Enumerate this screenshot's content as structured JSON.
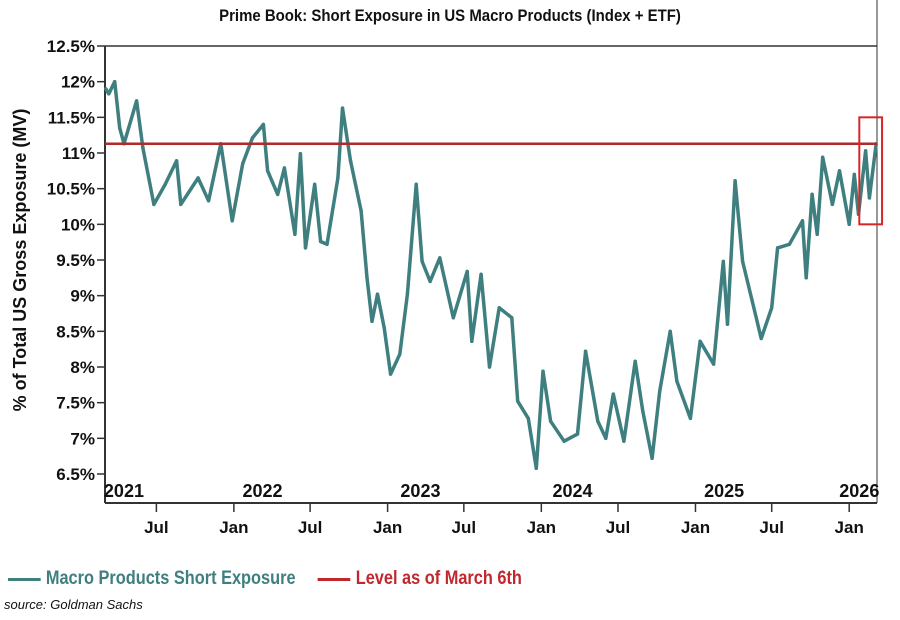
{
  "chart_data": {
    "type": "line",
    "title": "Prime Book: Short Exposure in US Macro Products (Index + ETF)",
    "xlabel": "",
    "ylabel": "% of Total US Gross Exposure (MV)",
    "ylim": [
      6.5,
      12.5
    ],
    "xlim": [
      "2021-03-01",
      "2026-03-08"
    ],
    "yticks": [
      "12.5%",
      "12%",
      "11.5%",
      "11%",
      "10.5%",
      "10%",
      "9.5%",
      "9%",
      "8.5%",
      "8%",
      "7.5%",
      "7%",
      "6.5%"
    ],
    "ytick_values": [
      12.5,
      12,
      11.5,
      11,
      10.5,
      10,
      9.5,
      9,
      8.5,
      8,
      7.5,
      7,
      6.5
    ],
    "year_labels": [
      {
        "label": "2021",
        "date": "2021-04-15"
      },
      {
        "label": "2022",
        "date": "2022-03-10"
      },
      {
        "label": "2023",
        "date": "2023-03-20"
      },
      {
        "label": "2024",
        "date": "2024-03-15"
      },
      {
        "label": "2025",
        "date": "2025-03-10"
      },
      {
        "label": "2026",
        "date": "2026-01-25"
      }
    ],
    "month_ticks": [
      {
        "label": "Jul",
        "date": "2021-07-01"
      },
      {
        "label": "Jan",
        "date": "2022-01-01"
      },
      {
        "label": "Jul",
        "date": "2022-07-01"
      },
      {
        "label": "Jan",
        "date": "2023-01-01"
      },
      {
        "label": "Jul",
        "date": "2023-07-01"
      },
      {
        "label": "Jan",
        "date": "2024-01-01"
      },
      {
        "label": "Jul",
        "date": "2024-07-01"
      },
      {
        "label": "Jan",
        "date": "2025-01-01"
      },
      {
        "label": "Jul",
        "date": "2025-07-01"
      },
      {
        "label": "Jan",
        "date": "2026-01-01"
      }
    ],
    "grid": false,
    "legend_position": "bottom",
    "series": [
      {
        "name": "Macro Products Short Exposure",
        "color": "#3f7f80",
        "x": [
          "2021-03-03",
          "2021-03-10",
          "2021-03-24",
          "2021-04-05",
          "2021-04-15",
          "2021-05-15",
          "2021-05-30",
          "2021-06-25",
          "2021-07-22",
          "2021-08-18",
          "2021-08-28",
          "2021-10-08",
          "2021-11-02",
          "2021-12-01",
          "2021-12-28",
          "2022-01-22",
          "2022-02-14",
          "2022-03-12",
          "2022-03-22",
          "2022-04-15",
          "2022-05-01",
          "2022-05-26",
          "2022-06-08",
          "2022-06-20",
          "2022-07-12",
          "2022-07-26",
          "2022-08-10",
          "2022-09-05",
          "2022-09-16",
          "2022-10-05",
          "2022-10-30",
          "2022-11-13",
          "2022-11-25",
          "2022-12-08",
          "2022-12-24",
          "2023-01-08",
          "2023-01-30",
          "2023-02-17",
          "2023-03-10",
          "2023-03-24",
          "2023-04-12",
          "2023-05-05",
          "2023-06-06",
          "2023-07-09",
          "2023-07-20",
          "2023-08-11",
          "2023-08-31",
          "2023-09-23",
          "2023-10-23",
          "2023-11-06",
          "2023-12-01",
          "2023-12-20",
          "2024-01-05",
          "2024-01-23",
          "2024-02-24",
          "2024-03-27",
          "2024-04-15",
          "2024-05-14",
          "2024-06-02",
          "2024-06-20",
          "2024-07-15",
          "2024-08-11",
          "2024-08-29",
          "2024-09-20",
          "2024-10-08",
          "2024-11-02",
          "2024-11-18",
          "2024-12-20",
          "2025-01-12",
          "2025-02-13",
          "2025-03-08",
          "2025-03-18",
          "2025-04-05",
          "2025-04-23",
          "2025-05-16",
          "2025-06-06",
          "2025-07-01",
          "2025-07-15",
          "2025-08-12",
          "2025-09-12",
          "2025-09-21",
          "2025-10-05",
          "2025-10-17",
          "2025-10-30",
          "2025-11-22",
          "2025-12-09",
          "2026-01-01",
          "2026-01-13",
          "2026-01-23",
          "2026-02-09",
          "2026-02-18",
          "2026-03-06"
        ],
        "y": [
          11.9,
          11.83,
          12.0,
          11.35,
          11.13,
          11.73,
          11.07,
          10.28,
          10.56,
          10.89,
          10.28,
          10.65,
          10.33,
          11.13,
          10.05,
          10.85,
          11.21,
          11.4,
          10.75,
          10.42,
          10.79,
          9.86,
          10.99,
          9.67,
          10.56,
          9.76,
          9.72,
          10.65,
          11.63,
          10.89,
          10.19,
          9.25,
          8.64,
          9.02,
          8.55,
          7.9,
          8.18,
          9.02,
          10.56,
          9.48,
          9.2,
          9.53,
          8.69,
          9.34,
          8.36,
          9.3,
          8.0,
          8.83,
          8.69,
          7.52,
          7.28,
          6.58,
          7.94,
          7.24,
          6.96,
          7.06,
          8.22,
          7.24,
          7.0,
          7.62,
          6.96,
          8.08,
          7.38,
          6.72,
          7.66,
          8.5,
          7.8,
          7.28,
          8.36,
          8.04,
          9.48,
          8.6,
          10.61,
          9.48,
          8.92,
          8.4,
          8.83,
          9.67,
          9.72,
          10.05,
          9.25,
          10.42,
          9.86,
          10.94,
          10.28,
          10.75,
          10.0,
          10.7,
          10.14,
          11.03,
          10.37,
          11.13
        ]
      },
      {
        "name": "Level as of March 6th",
        "color": "#b02a2a",
        "type": "hline",
        "y": 11.13
      }
    ],
    "highlight_box_color": "#d62728",
    "highlight_range": {
      "x": [
        "2026-01-25",
        "2026-03-20"
      ],
      "y": [
        10.0,
        11.5
      ]
    }
  },
  "legend": {
    "items": [
      {
        "label": "Macro Products Short Exposure",
        "color": "#3f7f80"
      },
      {
        "label": "Level as of March 6th",
        "color": "#c0282d"
      }
    ]
  },
  "source": "source: Goldman Sachs"
}
